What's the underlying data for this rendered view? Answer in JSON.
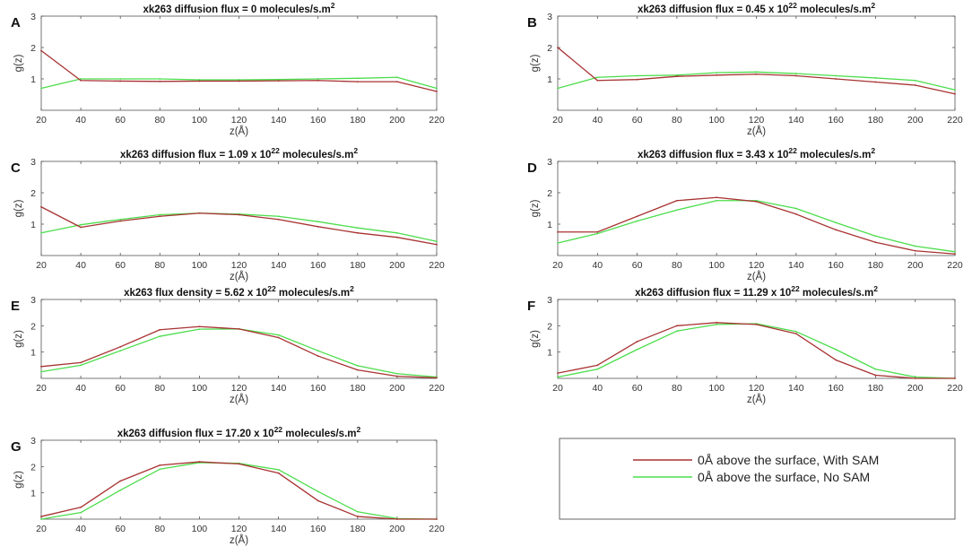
{
  "figure": {
    "series_names": [
      "0Å above the surface, With SAM",
      "0Å above the surface, No SAM"
    ],
    "series_colors": [
      "#a83232",
      "#4cdd4c"
    ]
  },
  "chart_data": [
    {
      "type": "line",
      "panel_label": "A",
      "title_prefix": "xk263 diffusion flux = 0",
      "title_exponent": "",
      "title_suffix": " molecules/s.m",
      "title_unit_power": "2",
      "xlabel": "z(Å)",
      "ylabel": "g(z)",
      "xlim": [
        20,
        220
      ],
      "ylim": [
        0,
        3
      ],
      "xticks": [
        "20",
        "40",
        "60",
        "80",
        "100",
        "120",
        "140",
        "160",
        "180",
        "200",
        "220"
      ],
      "yticks": [
        "1",
        "2",
        "3"
      ],
      "x": [
        20,
        40,
        60,
        80,
        100,
        120,
        140,
        160,
        180,
        200,
        220
      ],
      "series": [
        {
          "name": "0Å above the surface, With SAM",
          "values": [
            1.9,
            0.95,
            0.93,
            0.92,
            0.93,
            0.93,
            0.94,
            0.95,
            0.91,
            0.91,
            0.6
          ]
        },
        {
          "name": "0Å above the surface, No SAM",
          "values": [
            0.7,
            1.0,
            1.0,
            1.0,
            0.97,
            0.97,
            0.98,
            1.0,
            1.02,
            1.05,
            0.7
          ]
        }
      ]
    },
    {
      "type": "line",
      "panel_label": "B",
      "title_prefix": "xk263 diffusion flux = 0.45 x 10",
      "title_exponent": "22",
      "title_suffix": " molecules/s.m",
      "title_unit_power": "2",
      "xlabel": "z(Å)",
      "ylabel": "g(z)",
      "xlim": [
        20,
        220
      ],
      "ylim": [
        0,
        3
      ],
      "xticks": [
        "20",
        "40",
        "60",
        "80",
        "100",
        "120",
        "140",
        "160",
        "180",
        "200",
        "220"
      ],
      "yticks": [
        "1",
        "2",
        "3"
      ],
      "x": [
        20,
        40,
        60,
        80,
        100,
        120,
        140,
        160,
        180,
        200,
        220
      ],
      "series": [
        {
          "name": "0Å above the surface, With SAM",
          "values": [
            2.0,
            0.95,
            0.98,
            1.08,
            1.12,
            1.15,
            1.1,
            1.0,
            0.9,
            0.8,
            0.52
          ]
        },
        {
          "name": "0Å above the surface, No SAM",
          "values": [
            0.7,
            1.05,
            1.1,
            1.12,
            1.2,
            1.22,
            1.17,
            1.1,
            1.03,
            0.95,
            0.65
          ]
        }
      ]
    },
    {
      "type": "line",
      "panel_label": "C",
      "title_prefix": "xk263 diffusion flux = 1.09 x 10",
      "title_exponent": "22",
      "title_suffix": " molecules/s.m",
      "title_unit_power": "2",
      "xlabel": "z(Å)",
      "ylabel": "g(z)",
      "xlim": [
        20,
        220
      ],
      "ylim": [
        0,
        3
      ],
      "xticks": [
        "20",
        "40",
        "60",
        "80",
        "100",
        "120",
        "140",
        "160",
        "180",
        "200",
        "220"
      ],
      "yticks": [
        "1",
        "2",
        "3"
      ],
      "x": [
        20,
        40,
        60,
        80,
        100,
        120,
        140,
        160,
        180,
        200,
        220
      ],
      "series": [
        {
          "name": "0Å above the surface, With SAM",
          "values": [
            1.55,
            0.9,
            1.1,
            1.25,
            1.35,
            1.3,
            1.15,
            0.92,
            0.72,
            0.58,
            0.35
          ]
        },
        {
          "name": "0Å above the surface, No SAM",
          "values": [
            0.72,
            0.98,
            1.15,
            1.3,
            1.35,
            1.32,
            1.25,
            1.08,
            0.88,
            0.72,
            0.45
          ]
        }
      ]
    },
    {
      "type": "line",
      "panel_label": "D",
      "title_prefix": "xk263 diffusion flux = 3.43 x 10",
      "title_exponent": "22",
      "title_suffix": " molecules/s.m",
      "title_unit_power": "2",
      "xlabel": "z(Å)",
      "ylabel": "g(z)",
      "xlim": [
        20,
        220
      ],
      "ylim": [
        0,
        3
      ],
      "xticks": [
        "20",
        "40",
        "60",
        "80",
        "100",
        "120",
        "140",
        "160",
        "180",
        "200",
        "220"
      ],
      "yticks": [
        "1",
        "2",
        "3"
      ],
      "x": [
        20,
        40,
        60,
        80,
        100,
        120,
        140,
        160,
        180,
        200,
        220
      ],
      "series": [
        {
          "name": "0Å above the surface, With SAM",
          "values": [
            0.75,
            0.75,
            1.25,
            1.75,
            1.85,
            1.72,
            1.32,
            0.82,
            0.42,
            0.15,
            0.05
          ]
        },
        {
          "name": "0Å above the surface, No SAM",
          "values": [
            0.4,
            0.7,
            1.1,
            1.45,
            1.75,
            1.75,
            1.5,
            1.05,
            0.62,
            0.3,
            0.12
          ]
        }
      ]
    },
    {
      "type": "line",
      "panel_label": "E",
      "title_prefix": "xk263 flux density = 5.62 x 10",
      "title_exponent": "22",
      "title_suffix": " molecules/s.m",
      "title_unit_power": "2",
      "xlabel": "z(Å)",
      "ylabel": "g(z)",
      "xlim": [
        20,
        220
      ],
      "ylim": [
        0,
        3
      ],
      "xticks": [
        "20",
        "40",
        "60",
        "80",
        "100",
        "120",
        "140",
        "160",
        "180",
        "200",
        "220"
      ],
      "yticks": [
        "1",
        "2",
        "3"
      ],
      "x": [
        20,
        40,
        60,
        80,
        100,
        120,
        140,
        160,
        180,
        200,
        220
      ],
      "series": [
        {
          "name": "0Å above the surface, With SAM",
          "values": [
            0.45,
            0.6,
            1.2,
            1.85,
            1.97,
            1.88,
            1.55,
            0.85,
            0.32,
            0.08,
            0.02
          ]
        },
        {
          "name": "0Å above the surface, No SAM",
          "values": [
            0.25,
            0.5,
            1.05,
            1.6,
            1.87,
            1.88,
            1.65,
            1.05,
            0.48,
            0.18,
            0.05
          ]
        }
      ]
    },
    {
      "type": "line",
      "panel_label": "F",
      "title_prefix": "xk263 diffusion flux = 11.29 x 10",
      "title_exponent": "22",
      "title_suffix": " molecules/s.m",
      "title_unit_power": "2",
      "xlabel": "z(Å)",
      "ylabel": "g(z)",
      "xlim": [
        20,
        220
      ],
      "ylim": [
        0,
        3
      ],
      "xticks": [
        "20",
        "40",
        "60",
        "80",
        "100",
        "120",
        "140",
        "160",
        "180",
        "200",
        "220"
      ],
      "yticks": [
        "1",
        "2",
        "3"
      ],
      "x": [
        20,
        40,
        60,
        80,
        100,
        120,
        140,
        160,
        180,
        200,
        220
      ],
      "series": [
        {
          "name": "0Å above the surface, With SAM",
          "values": [
            0.2,
            0.5,
            1.4,
            2.0,
            2.12,
            2.05,
            1.7,
            0.7,
            0.12,
            0.0,
            0.0
          ]
        },
        {
          "name": "0Å above the surface, No SAM",
          "values": [
            0.05,
            0.35,
            1.1,
            1.8,
            2.05,
            2.08,
            1.78,
            1.1,
            0.35,
            0.05,
            0.0
          ]
        }
      ]
    },
    {
      "type": "line",
      "panel_label": "G",
      "title_prefix": "xk263 diffusion flux = 17.20 x 10",
      "title_exponent": "22",
      "title_suffix": " molecules/s.m",
      "title_unit_power": "2",
      "xlabel": "z(Å)",
      "ylabel": "g(z)",
      "xlim": [
        20,
        220
      ],
      "ylim": [
        0,
        3
      ],
      "xticks": [
        "20",
        "40",
        "60",
        "80",
        "100",
        "120",
        "140",
        "160",
        "180",
        "200",
        "220"
      ],
      "yticks": [
        "1",
        "2",
        "3"
      ],
      "x": [
        20,
        40,
        60,
        80,
        100,
        120,
        140,
        160,
        180,
        200,
        220
      ],
      "series": [
        {
          "name": "0Å above the surface, With SAM",
          "values": [
            0.1,
            0.45,
            1.45,
            2.05,
            2.18,
            2.1,
            1.75,
            0.7,
            0.1,
            0.0,
            0.0
          ]
        },
        {
          "name": "0Å above the surface, No SAM",
          "values": [
            0.0,
            0.25,
            1.1,
            1.9,
            2.15,
            2.12,
            1.88,
            1.05,
            0.28,
            0.02,
            0.0
          ]
        }
      ]
    }
  ]
}
